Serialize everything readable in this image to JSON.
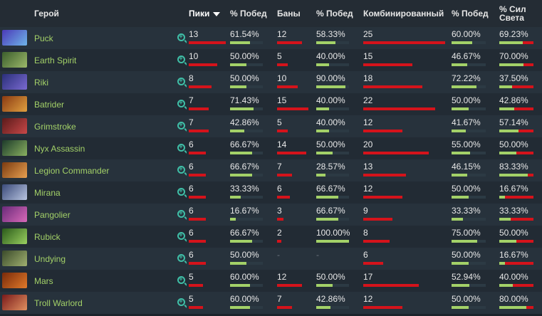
{
  "header": {
    "hero": "Герой",
    "picks": "Пики",
    "picks_winrate": "% Побед",
    "bans": "Баны",
    "bans_winrate": "% Побед",
    "combined": "Комбинированный",
    "combined_winrate": "% Побед",
    "radiant": "% Сил Света"
  },
  "colors": {
    "hero_name": "#a3d168",
    "bar_red": "#d5131b",
    "bar_green": "#a3d168",
    "zoom_icon": "#3fbfa7"
  },
  "rows": [
    {
      "hero": "Puck",
      "icon": "puck-portrait",
      "c1": "#4a3ab8",
      "c2": "#6fb4e8",
      "picks": "13",
      "picks_pct": 1.0,
      "pick_win": "61.54%",
      "pick_win_pct": 0.6154,
      "bans": "12",
      "bans_pct": 0.8,
      "ban_win": "58.33%",
      "ban_win_pct": 0.5833,
      "comb": "25",
      "comb_pct": 1.0,
      "comb_win": "60.00%",
      "comb_win_pct": 0.6,
      "radiant": "69.23%",
      "radiant_pct": 0.6923
    },
    {
      "hero": "Earth Spirit",
      "icon": "earth-spirit-portrait",
      "c1": "#3b5e2c",
      "c2": "#9cb86a",
      "picks": "10",
      "picks_pct": 0.77,
      "pick_win": "50.00%",
      "pick_win_pct": 0.5,
      "bans": "5",
      "bans_pct": 0.333,
      "ban_win": "40.00%",
      "ban_win_pct": 0.4,
      "comb": "15",
      "comb_pct": 0.6,
      "comb_win": "46.67%",
      "comb_win_pct": 0.4667,
      "radiant": "70.00%",
      "radiant_pct": 0.7
    },
    {
      "hero": "Riki",
      "icon": "riki-portrait",
      "c1": "#2a2f7a",
      "c2": "#7a6ad0",
      "picks": "8",
      "picks_pct": 0.615,
      "pick_win": "50.00%",
      "pick_win_pct": 0.5,
      "bans": "10",
      "bans_pct": 0.667,
      "ban_win": "90.00%",
      "ban_win_pct": 0.9,
      "comb": "18",
      "comb_pct": 0.72,
      "comb_win": "72.22%",
      "comb_win_pct": 0.7222,
      "radiant": "37.50%",
      "radiant_pct": 0.375
    },
    {
      "hero": "Batrider",
      "icon": "batrider-portrait",
      "c1": "#8a3a12",
      "c2": "#e0a040",
      "picks": "7",
      "picks_pct": 0.538,
      "pick_win": "71.43%",
      "pick_win_pct": 0.7143,
      "bans": "15",
      "bans_pct": 1.0,
      "ban_win": "40.00%",
      "ban_win_pct": 0.4,
      "comb": "22",
      "comb_pct": 0.88,
      "comb_win": "50.00%",
      "comb_win_pct": 0.5,
      "radiant": "42.86%",
      "radiant_pct": 0.4286
    },
    {
      "hero": "Grimstroke",
      "icon": "grimstroke-portrait",
      "c1": "#5a1a1a",
      "c2": "#c84848",
      "picks": "7",
      "picks_pct": 0.538,
      "pick_win": "42.86%",
      "pick_win_pct": 0.4286,
      "bans": "5",
      "bans_pct": 0.333,
      "ban_win": "40.00%",
      "ban_win_pct": 0.4,
      "comb": "12",
      "comb_pct": 0.48,
      "comb_win": "41.67%",
      "comb_win_pct": 0.4167,
      "radiant": "57.14%",
      "radiant_pct": 0.5714
    },
    {
      "hero": "Nyx Assassin",
      "icon": "nyx-assassin-portrait",
      "c1": "#1c3a2a",
      "c2": "#8ab060",
      "picks": "6",
      "picks_pct": 0.46,
      "pick_win": "66.67%",
      "pick_win_pct": 0.6667,
      "bans": "14",
      "bans_pct": 0.933,
      "ban_win": "50.00%",
      "ban_win_pct": 0.5,
      "comb": "20",
      "comb_pct": 0.8,
      "comb_win": "55.00%",
      "comb_win_pct": 0.55,
      "radiant": "50.00%",
      "radiant_pct": 0.5
    },
    {
      "hero": "Legion Commander",
      "icon": "legion-commander-portrait",
      "c1": "#7a3a10",
      "c2": "#e8a050",
      "picks": "6",
      "picks_pct": 0.46,
      "pick_win": "66.67%",
      "pick_win_pct": 0.6667,
      "bans": "7",
      "bans_pct": 0.467,
      "ban_win": "28.57%",
      "ban_win_pct": 0.2857,
      "comb": "13",
      "comb_pct": 0.52,
      "comb_win": "46.15%",
      "comb_win_pct": 0.4615,
      "radiant": "83.33%",
      "radiant_pct": 0.8333
    },
    {
      "hero": "Mirana",
      "icon": "mirana-portrait",
      "c1": "#3a4a7a",
      "c2": "#b8c4e0",
      "picks": "6",
      "picks_pct": 0.46,
      "pick_win": "33.33%",
      "pick_win_pct": 0.3333,
      "bans": "6",
      "bans_pct": 0.4,
      "ban_win": "66.67%",
      "ban_win_pct": 0.6667,
      "comb": "12",
      "comb_pct": 0.48,
      "comb_win": "50.00%",
      "comb_win_pct": 0.5,
      "radiant": "16.67%",
      "radiant_pct": 0.1667
    },
    {
      "hero": "Pangolier",
      "icon": "pangolier-portrait",
      "c1": "#6a2a7a",
      "c2": "#d86ab8",
      "picks": "6",
      "picks_pct": 0.46,
      "pick_win": "16.67%",
      "pick_win_pct": 0.1667,
      "bans": "3",
      "bans_pct": 0.2,
      "ban_win": "66.67%",
      "ban_win_pct": 0.6667,
      "comb": "9",
      "comb_pct": 0.36,
      "comb_win": "33.33%",
      "comb_win_pct": 0.3333,
      "radiant": "33.33%",
      "radiant_pct": 0.3333
    },
    {
      "hero": "Rubick",
      "icon": "rubick-portrait",
      "c1": "#2a5a1a",
      "c2": "#9ad060",
      "picks": "6",
      "picks_pct": 0.46,
      "pick_win": "66.67%",
      "pick_win_pct": 0.6667,
      "bans": "2",
      "bans_pct": 0.133,
      "ban_win": "100.00%",
      "ban_win_pct": 1.0,
      "comb": "8",
      "comb_pct": 0.32,
      "comb_win": "75.00%",
      "comb_win_pct": 0.75,
      "radiant": "50.00%",
      "radiant_pct": 0.5
    },
    {
      "hero": "Undying",
      "icon": "undying-portrait",
      "c1": "#3a4a2a",
      "c2": "#a0b070",
      "picks": "6",
      "picks_pct": 0.46,
      "pick_win": "50.00%",
      "pick_win_pct": 0.5,
      "bans": "-",
      "bans_pct": 0,
      "ban_win": "-",
      "ban_win_pct": 0,
      "comb": "6",
      "comb_pct": 0.24,
      "comb_win": "50.00%",
      "comb_win_pct": 0.5,
      "radiant": "16.67%",
      "radiant_pct": 0.1667
    },
    {
      "hero": "Mars",
      "icon": "mars-portrait",
      "c1": "#7a2a0a",
      "c2": "#e07a2a",
      "picks": "5",
      "picks_pct": 0.385,
      "pick_win": "60.00%",
      "pick_win_pct": 0.6,
      "bans": "12",
      "bans_pct": 0.8,
      "ban_win": "50.00%",
      "ban_win_pct": 0.5,
      "comb": "17",
      "comb_pct": 0.68,
      "comb_win": "52.94%",
      "comb_win_pct": 0.5294,
      "radiant": "40.00%",
      "radiant_pct": 0.4
    },
    {
      "hero": "Troll Warlord",
      "icon": "troll-warlord-portrait",
      "c1": "#7a1a1a",
      "c2": "#e09060",
      "picks": "5",
      "picks_pct": 0.385,
      "pick_win": "60.00%",
      "pick_win_pct": 0.6,
      "bans": "7",
      "bans_pct": 0.467,
      "ban_win": "42.86%",
      "ban_win_pct": 0.4286,
      "comb": "12",
      "comb_pct": 0.48,
      "comb_win": "50.00%",
      "comb_win_pct": 0.5,
      "radiant": "80.00%",
      "radiant_pct": 0.8
    }
  ]
}
